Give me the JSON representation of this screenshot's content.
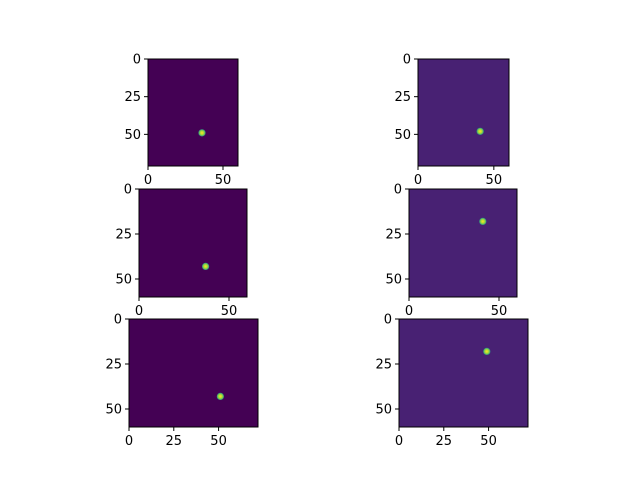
{
  "figure": {
    "background": "#ffffff",
    "colormap": "viridis",
    "colors": {
      "dark_background_left": "#440154",
      "dark_background_right": "#482173",
      "spot_edge": "#21918c",
      "spot_center": "#fde725"
    }
  },
  "chart_data": [
    {
      "type": "heatmap",
      "position": "row-1-left",
      "cols": 60,
      "rows": 71,
      "xlim": [
        0,
        60
      ],
      "ylim": [
        71,
        0
      ],
      "xticks": [
        0,
        50
      ],
      "yticks": [
        0,
        25,
        50
      ],
      "xtick_labels": [
        "0",
        "50"
      ],
      "ytick_labels": [
        "0",
        "25",
        "50"
      ],
      "background_color": "#440154",
      "spot": {
        "x": 36,
        "y": 49
      }
    },
    {
      "type": "heatmap",
      "position": "row-1-right",
      "cols": 60,
      "rows": 71,
      "xlim": [
        0,
        60
      ],
      "ylim": [
        71,
        0
      ],
      "xticks": [
        0,
        50
      ],
      "yticks": [
        0,
        25,
        50
      ],
      "xtick_labels": [
        "0",
        "50"
      ],
      "ytick_labels": [
        "0",
        "25",
        "50"
      ],
      "background_color": "#482173",
      "spot": {
        "x": 41,
        "y": 48
      }
    },
    {
      "type": "heatmap",
      "position": "row-2-left",
      "cols": 60,
      "rows": 60,
      "xlim": [
        0,
        60
      ],
      "ylim": [
        60,
        0
      ],
      "xticks": [
        0,
        50
      ],
      "yticks": [
        0,
        25,
        50
      ],
      "xtick_labels": [
        "0",
        "50"
      ],
      "ytick_labels": [
        "0",
        "25",
        "50"
      ],
      "background_color": "#440154",
      "spot": {
        "x": 37,
        "y": 43
      }
    },
    {
      "type": "heatmap",
      "position": "row-2-right",
      "cols": 60,
      "rows": 60,
      "xlim": [
        0,
        60
      ],
      "ylim": [
        60,
        0
      ],
      "xticks": [
        0,
        50
      ],
      "yticks": [
        0,
        25,
        50
      ],
      "xtick_labels": [
        "0",
        "50"
      ],
      "ytick_labels": [
        "0",
        "25",
        "50"
      ],
      "background_color": "#482173",
      "spot": {
        "x": 41,
        "y": 18
      }
    },
    {
      "type": "heatmap",
      "position": "row-3-left",
      "cols": 72,
      "rows": 60,
      "xlim": [
        0,
        72
      ],
      "ylim": [
        60,
        0
      ],
      "xticks": [
        0,
        25,
        50
      ],
      "yticks": [
        0,
        25,
        50
      ],
      "xtick_labels": [
        "0",
        "25",
        "50"
      ],
      "ytick_labels": [
        "0",
        "25",
        "50"
      ],
      "background_color": "#440154",
      "spot": {
        "x": 51,
        "y": 43
      }
    },
    {
      "type": "heatmap",
      "position": "row-3-right",
      "cols": 72,
      "rows": 60,
      "xlim": [
        0,
        72
      ],
      "ylim": [
        60,
        0
      ],
      "xticks": [
        0,
        25,
        50
      ],
      "yticks": [
        0,
        25,
        50
      ],
      "xtick_labels": [
        "0",
        "25",
        "50"
      ],
      "ytick_labels": [
        "0",
        "25",
        "50"
      ],
      "background_color": "#482173",
      "spot": {
        "x": 49,
        "y": 18
      }
    }
  ]
}
